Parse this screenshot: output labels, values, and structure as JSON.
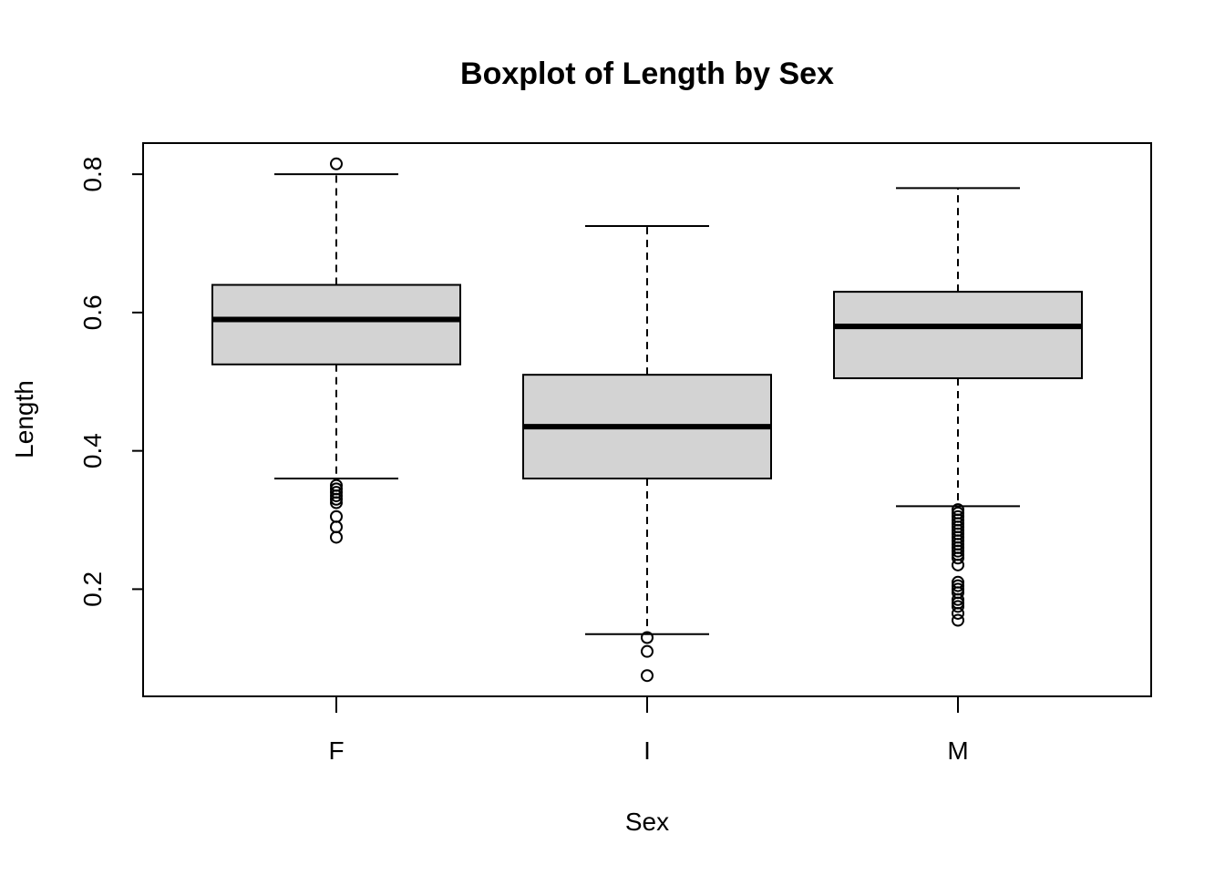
{
  "chart_data": {
    "type": "boxplot",
    "title": "Boxplot of Length by Sex",
    "xlabel": "Sex",
    "ylabel": "Length",
    "ylim": [
      0.045,
      0.845
    ],
    "yticks": [
      0.2,
      0.4,
      0.6,
      0.8
    ],
    "ytick_labels": [
      "0.2",
      "0.4",
      "0.6",
      "0.8"
    ],
    "box_color": "#D3D3D3",
    "grid": false,
    "groups": [
      {
        "name": "F",
        "whisker_low": 0.36,
        "q1": 0.525,
        "median": 0.59,
        "q3": 0.64,
        "whisker_high": 0.8,
        "outliers": [
          0.815,
          0.35,
          0.345,
          0.34,
          0.335,
          0.33,
          0.325,
          0.305,
          0.29,
          0.275
        ]
      },
      {
        "name": "I",
        "whisker_low": 0.135,
        "q1": 0.36,
        "median": 0.435,
        "q3": 0.51,
        "whisker_high": 0.725,
        "outliers": [
          0.13,
          0.11,
          0.075
        ]
      },
      {
        "name": "M",
        "whisker_low": 0.32,
        "q1": 0.505,
        "median": 0.58,
        "q3": 0.63,
        "whisker_high": 0.78,
        "outliers": [
          0.315,
          0.31,
          0.305,
          0.3,
          0.295,
          0.29,
          0.285,
          0.28,
          0.275,
          0.27,
          0.265,
          0.26,
          0.255,
          0.25,
          0.245,
          0.235,
          0.21,
          0.205,
          0.2,
          0.195,
          0.185,
          0.18,
          0.175,
          0.165,
          0.155
        ]
      }
    ]
  }
}
